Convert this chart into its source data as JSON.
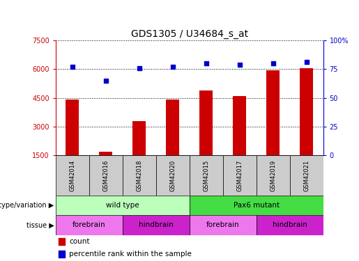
{
  "title": "GDS1305 / U34684_s_at",
  "samples": [
    "GSM42014",
    "GSM42016",
    "GSM42018",
    "GSM42020",
    "GSM42015",
    "GSM42017",
    "GSM42019",
    "GSM42021"
  ],
  "counts": [
    4400,
    1700,
    3300,
    4400,
    4900,
    4600,
    5950,
    6050
  ],
  "percentile_ranks": [
    77,
    65,
    76,
    77,
    80,
    79,
    80,
    81
  ],
  "ylim_left": [
    1500,
    7500
  ],
  "ylim_right": [
    0,
    100
  ],
  "yticks_left": [
    1500,
    3000,
    4500,
    6000,
    7500
  ],
  "yticks_right": [
    0,
    25,
    50,
    75,
    100
  ],
  "ytick_labels_right": [
    "0",
    "25",
    "50",
    "75",
    "100%"
  ],
  "bar_color": "#cc0000",
  "dot_color": "#0000cc",
  "sample_box_color": "#cccccc",
  "genotype_groups": [
    {
      "label": "wild type",
      "start": 0,
      "end": 4,
      "color": "#bbffbb"
    },
    {
      "label": "Pax6 mutant",
      "start": 4,
      "end": 8,
      "color": "#44dd44"
    }
  ],
  "tissue_groups": [
    {
      "label": "forebrain",
      "start": 0,
      "end": 2,
      "color": "#ee77ee"
    },
    {
      "label": "hindbrain",
      "start": 2,
      "end": 4,
      "color": "#cc22cc"
    },
    {
      "label": "forebrain",
      "start": 4,
      "end": 6,
      "color": "#ee77ee"
    },
    {
      "label": "hindbrain",
      "start": 6,
      "end": 8,
      "color": "#cc22cc"
    }
  ],
  "left_axis_color": "#cc0000",
  "right_axis_color": "#0000cc",
  "title_fontsize": 10,
  "tick_fontsize": 7,
  "bar_width": 0.4,
  "n_samples": 8
}
